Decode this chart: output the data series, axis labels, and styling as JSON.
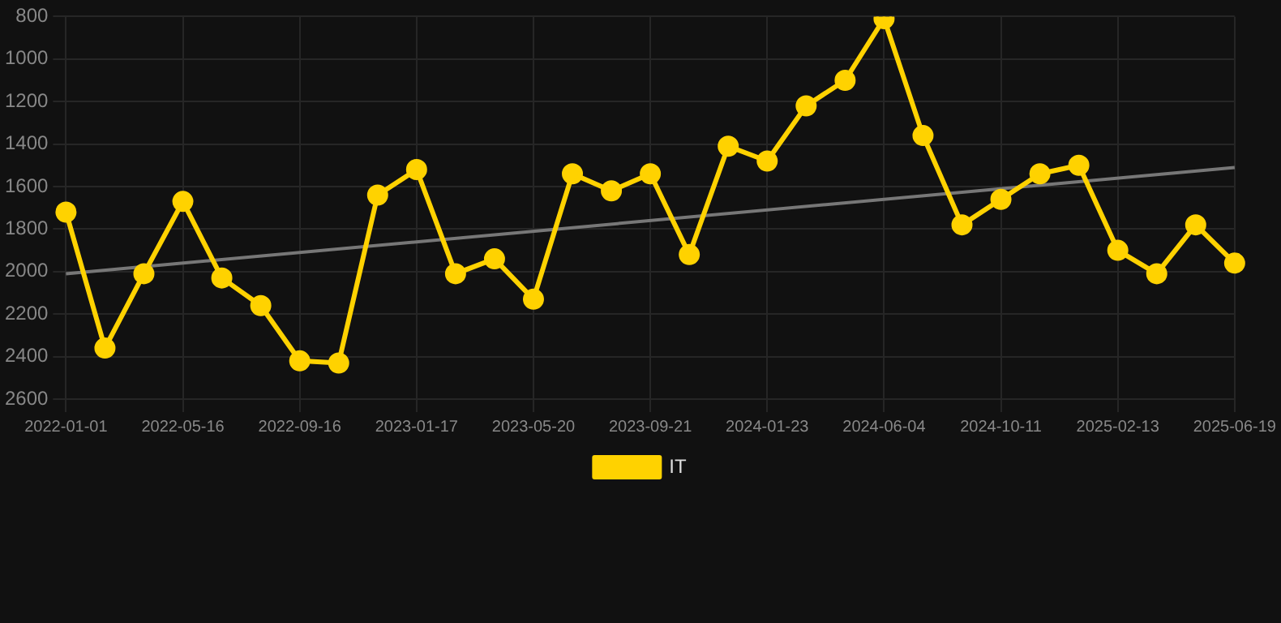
{
  "chart_data": {
    "type": "line",
    "categories": [
      "2022-01-01",
      null,
      null,
      "2022-05-16",
      null,
      null,
      "2022-09-16",
      null,
      null,
      "2023-01-17",
      null,
      null,
      "2023-05-20",
      null,
      null,
      "2023-09-21",
      null,
      null,
      "2024-01-23",
      null,
      null,
      "2024-06-04",
      null,
      null,
      "2024-10-11",
      null,
      null,
      "2025-02-13",
      null,
      null,
      "2025-06-19"
    ],
    "series": [
      {
        "name": "IT",
        "color": "#ffd200",
        "values": [
          1720,
          2360,
          2010,
          1670,
          2030,
          2160,
          2420,
          2430,
          1640,
          1520,
          2010,
          1940,
          2130,
          1540,
          1620,
          1540,
          1920,
          1410,
          1480,
          1220,
          1100,
          810,
          1360,
          1780,
          1660,
          1540,
          1500,
          1900,
          2010,
          1780,
          1960
        ],
        "marker": "circle"
      },
      {
        "type": "line",
        "color": "#777777",
        "marker": "none",
        "values": [
          2010,
          null,
          null,
          null,
          null,
          null,
          null,
          null,
          null,
          null,
          null,
          null,
          null,
          null,
          null,
          null,
          null,
          null,
          null,
          null,
          null,
          null,
          null,
          null,
          null,
          null,
          null,
          null,
          null,
          null,
          1510
        ]
      }
    ],
    "ylim": [
      2600,
      800
    ],
    "yticks": [
      800,
      1000,
      1200,
      1400,
      1600,
      1800,
      2000,
      2200,
      2400,
      2600
    ],
    "grid": true,
    "legend": "bottom"
  }
}
